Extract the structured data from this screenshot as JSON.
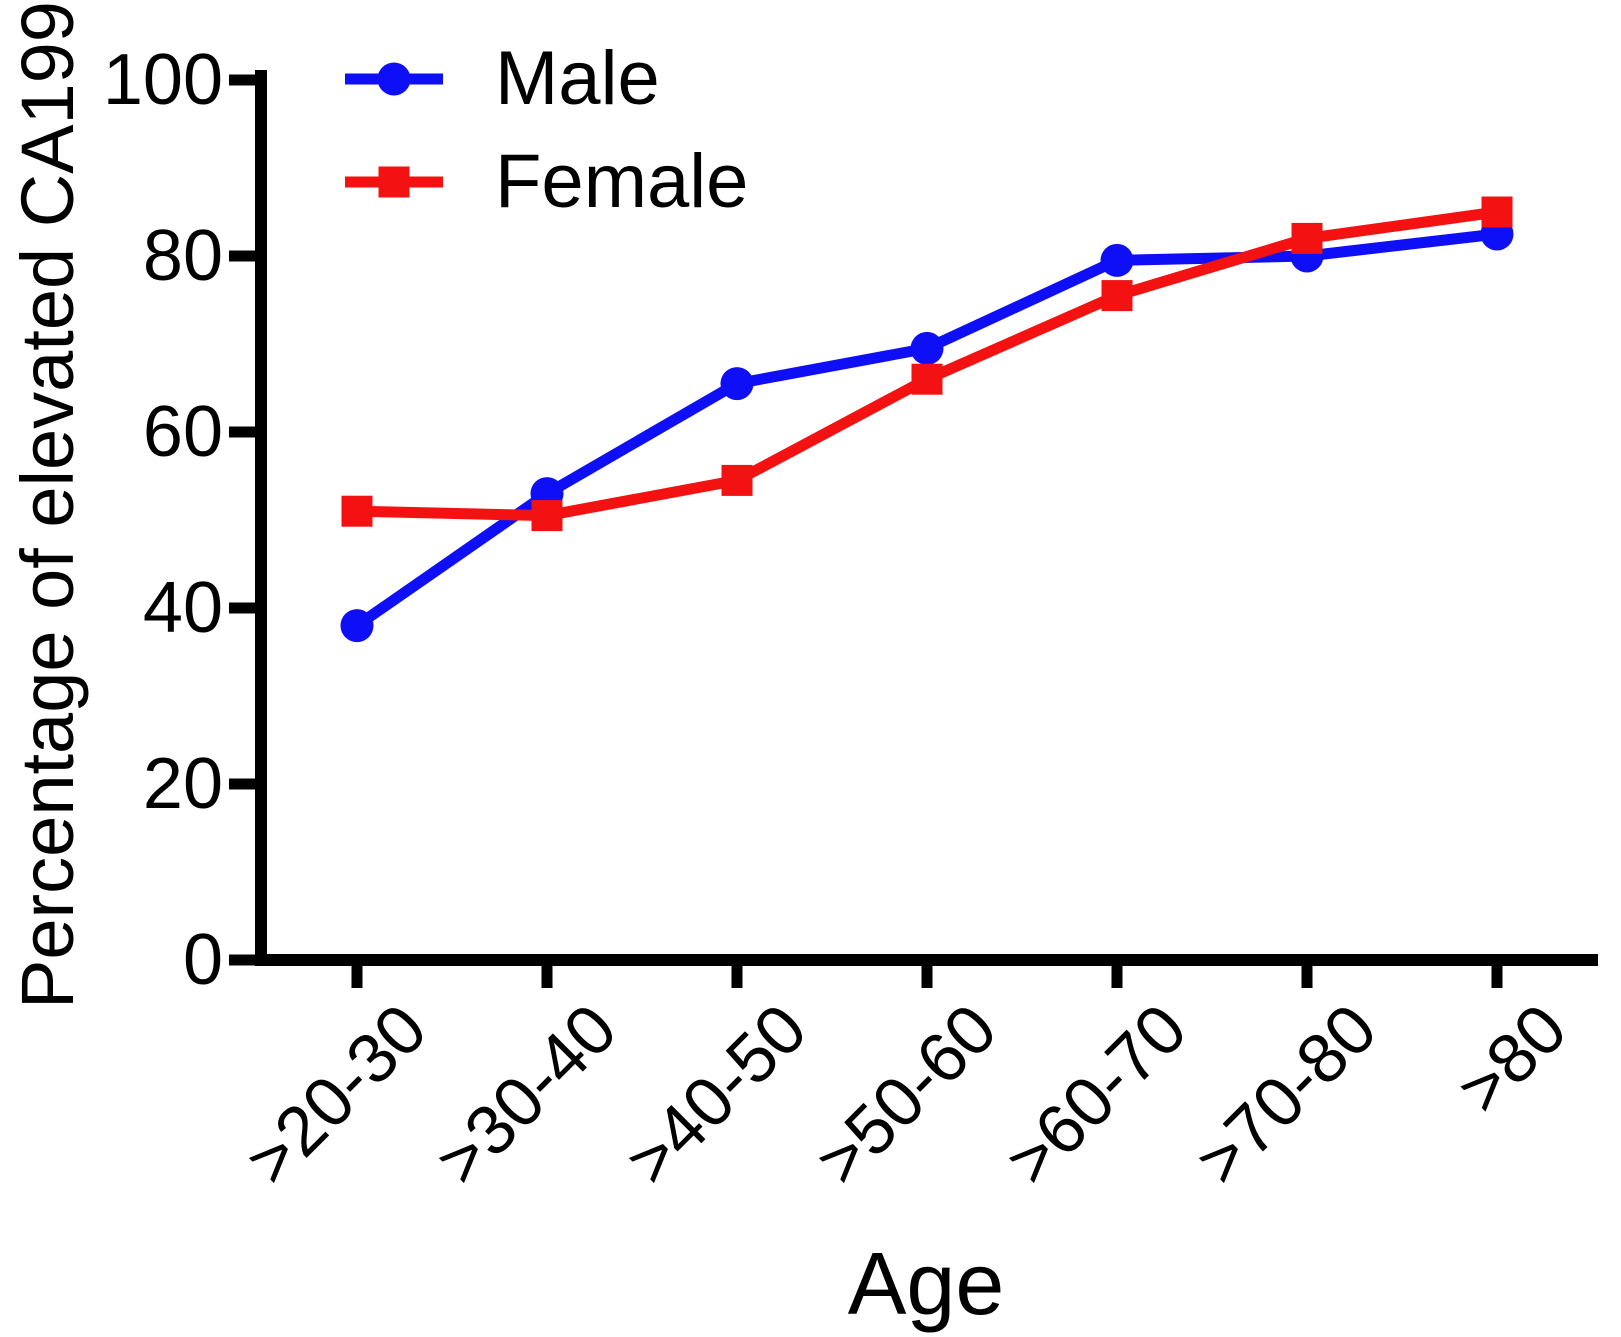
{
  "chart_data": {
    "type": "line",
    "title": "",
    "xlabel": "Age",
    "ylabel": "Percentage of elevated CA199",
    "categories": [
      ">20-30",
      ">30-40",
      ">40-50",
      ">50-60",
      ">60-70",
      ">70-80",
      ">80"
    ],
    "series": [
      {
        "name": "Male",
        "color": "#0E0EF7",
        "marker": "circle",
        "values": [
          38,
          53,
          65.5,
          69.5,
          79.5,
          80,
          82.5
        ]
      },
      {
        "name": "Female",
        "color": "#F31111",
        "marker": "square",
        "values": [
          51,
          50.5,
          54.5,
          66,
          75.5,
          82,
          85
        ]
      }
    ],
    "yticks": [
      0,
      20,
      40,
      60,
      80,
      100
    ],
    "ylim": [
      0,
      100
    ],
    "grid": false,
    "legend_position": "top-left-inside",
    "axis_color": "#000000"
  }
}
